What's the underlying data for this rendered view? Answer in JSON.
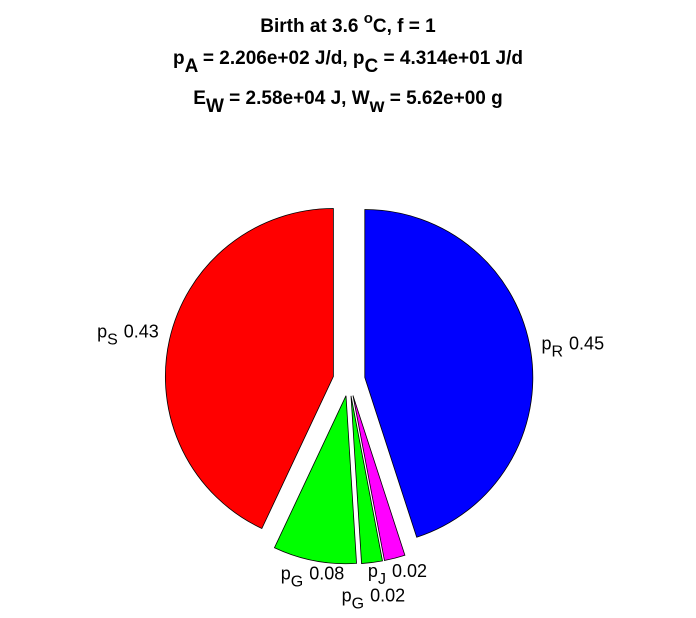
{
  "chart_data": {
    "type": "pie",
    "title": [
      [
        "Birth at 3.6 ",
        "o",
        "C, f = 1"
      ],
      [
        "p",
        "A",
        " = 2.206e+02 J/d, p",
        "C",
        " = 4.314e+01 J/d"
      ],
      [
        "E",
        "W",
        " = 2.58e+04 J, W",
        "w",
        " = 5.62e+00 g"
      ]
    ],
    "labels": [
      [
        "p",
        "R"
      ],
      [
        "p",
        "J"
      ],
      [
        "p",
        "G"
      ],
      [
        "p",
        "G"
      ],
      [
        "p",
        "S"
      ]
    ],
    "values": [
      0.45,
      0.02,
      0.02,
      0.08,
      0.43
    ],
    "colors": [
      "#0000ff",
      "#ff00ff",
      "#00ff00",
      "#00ff00",
      "#ff0000"
    ]
  }
}
